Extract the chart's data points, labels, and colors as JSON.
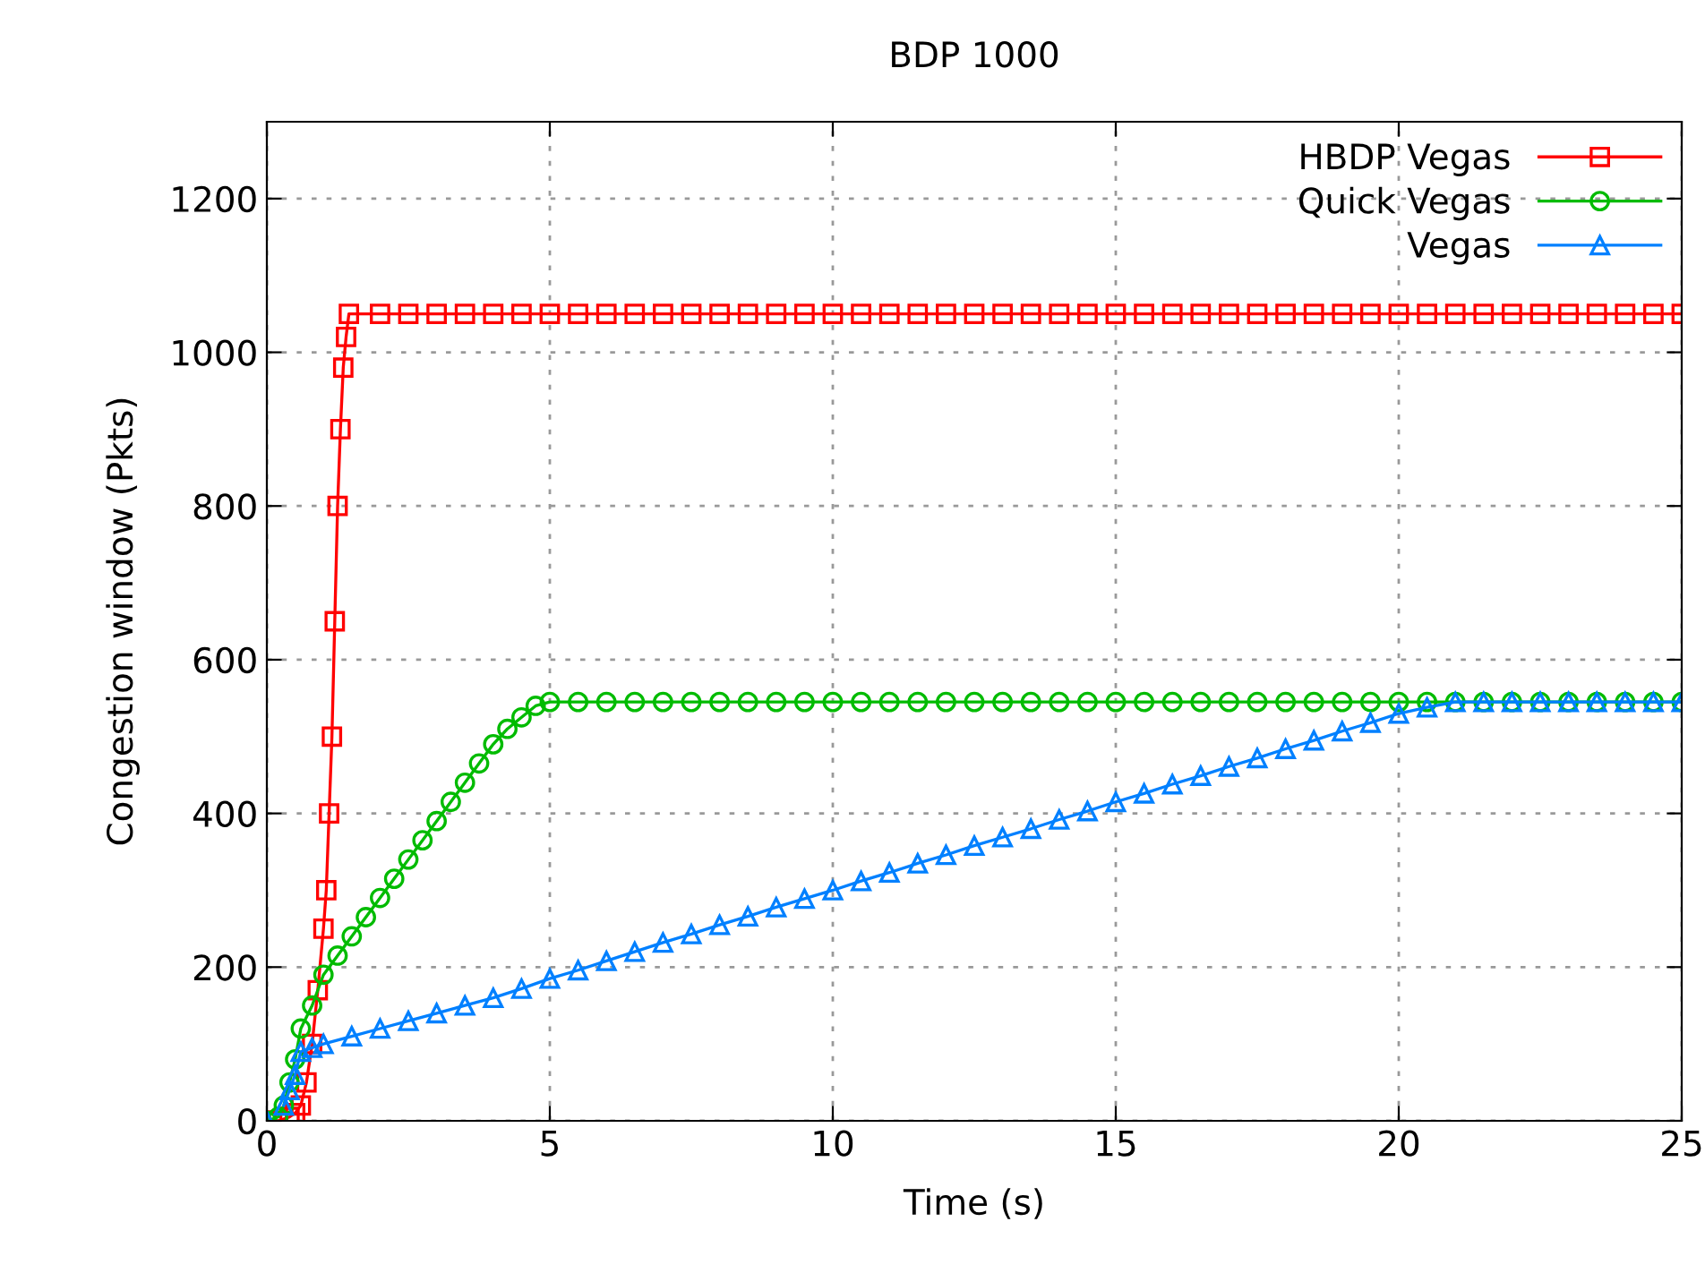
{
  "chart_data": {
    "type": "line",
    "title": "BDP 1000",
    "xlabel": "Time (s)",
    "ylabel": "Congestion window (Pkts)",
    "xlim": [
      0,
      25
    ],
    "ylim": [
      0,
      1300
    ],
    "xticks": [
      0,
      5,
      10,
      15,
      20,
      25
    ],
    "yticks": [
      0,
      200,
      400,
      600,
      800,
      1000,
      1200
    ],
    "grid": true,
    "legend": "top right",
    "series": [
      {
        "name": "HBDP Vegas",
        "color": "#ff0000",
        "marker": "square",
        "x": [
          0,
          0.2,
          0.4,
          0.5,
          0.6,
          0.7,
          0.8,
          0.9,
          1.0,
          1.05,
          1.1,
          1.15,
          1.2,
          1.25,
          1.3,
          1.35,
          1.4,
          1.45,
          2,
          2.5,
          3,
          3.5,
          4,
          4.5,
          5,
          5.5,
          6,
          6.5,
          7,
          7.5,
          8,
          8.5,
          9,
          9.5,
          10,
          10.5,
          11,
          11.5,
          12,
          12.5,
          13,
          13.5,
          14,
          14.5,
          15,
          15.5,
          16,
          16.5,
          17,
          17.5,
          18,
          18.5,
          19,
          19.5,
          20,
          20.5,
          21,
          21.5,
          22,
          22.5,
          23,
          23.5,
          24,
          24.5,
          25
        ],
        "values": [
          0,
          0,
          5,
          10,
          20,
          50,
          100,
          170,
          250,
          300,
          400,
          500,
          650,
          800,
          900,
          980,
          1020,
          1050,
          1050,
          1050,
          1050,
          1050,
          1050,
          1050,
          1050,
          1050,
          1050,
          1050,
          1050,
          1050,
          1050,
          1050,
          1050,
          1050,
          1050,
          1050,
          1050,
          1050,
          1050,
          1050,
          1050,
          1050,
          1050,
          1050,
          1050,
          1050,
          1050,
          1050,
          1050,
          1050,
          1050,
          1050,
          1050,
          1050,
          1050,
          1050,
          1050,
          1050,
          1050,
          1050,
          1050,
          1050,
          1050,
          1050,
          1050
        ]
      },
      {
        "name": "Quick Vegas",
        "color": "#00bb00",
        "marker": "circle",
        "x": [
          0,
          0.2,
          0.3,
          0.4,
          0.5,
          0.6,
          0.8,
          1.0,
          1.25,
          1.5,
          1.75,
          2,
          2.25,
          2.5,
          2.75,
          3,
          3.25,
          3.5,
          3.75,
          4,
          4.25,
          4.5,
          4.75,
          5,
          5.5,
          6,
          6.5,
          7,
          7.5,
          8,
          8.5,
          9,
          9.5,
          10,
          10.5,
          11,
          11.5,
          12,
          12.5,
          13,
          13.5,
          14,
          14.5,
          15,
          15.5,
          16,
          16.5,
          17,
          17.5,
          18,
          18.5,
          19,
          19.5,
          20,
          20.5,
          21,
          21.5,
          22,
          22.5,
          23,
          23.5,
          24,
          24.5,
          25
        ],
        "values": [
          0,
          5,
          20,
          50,
          80,
          120,
          150,
          190,
          215,
          240,
          265,
          290,
          315,
          340,
          365,
          390,
          415,
          440,
          465,
          490,
          510,
          525,
          540,
          545,
          545,
          545,
          545,
          545,
          545,
          545,
          545,
          545,
          545,
          545,
          545,
          545,
          545,
          545,
          545,
          545,
          545,
          545,
          545,
          545,
          545,
          545,
          545,
          545,
          545,
          545,
          545,
          545,
          545,
          545,
          545,
          545,
          545,
          545,
          545,
          545,
          545,
          545,
          545,
          545
        ]
      },
      {
        "name": "Vegas",
        "color": "#0080ff",
        "marker": "triangle",
        "x": [
          0,
          0.2,
          0.3,
          0.4,
          0.5,
          0.6,
          0.8,
          1,
          1.5,
          2,
          2.5,
          3,
          3.5,
          4,
          4.5,
          5,
          5.5,
          6,
          6.5,
          7,
          7.5,
          8,
          8.5,
          9,
          9.5,
          10,
          10.5,
          11,
          11.5,
          12,
          12.5,
          13,
          13.5,
          14,
          14.5,
          15,
          15.5,
          16,
          16.5,
          17,
          17.5,
          18,
          18.5,
          19,
          19.5,
          20,
          20.5,
          21,
          21.5,
          22,
          22.5,
          23,
          23.5,
          24,
          24.5,
          25
        ],
        "values": [
          0,
          null,
          20,
          40,
          60,
          90,
          95,
          100,
          110,
          120,
          130,
          140,
          150,
          160,
          172,
          185,
          196,
          208,
          220,
          232,
          243,
          255,
          266,
          278,
          289,
          300,
          312,
          323,
          335,
          346,
          358,
          369,
          380,
          392,
          403,
          415,
          426,
          438,
          449,
          461,
          472,
          484,
          495,
          507,
          518,
          530,
          538,
          545,
          545,
          545,
          545,
          545,
          545,
          545,
          545,
          545
        ]
      }
    ]
  }
}
